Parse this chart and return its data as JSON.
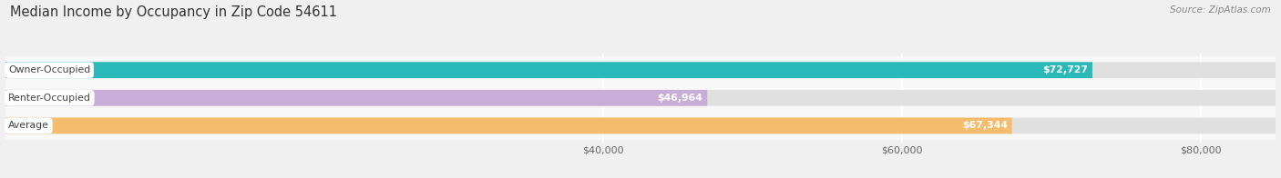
{
  "title": "Median Income by Occupancy in Zip Code 54611",
  "source": "Source: ZipAtlas.com",
  "categories": [
    "Owner-Occupied",
    "Renter-Occupied",
    "Average"
  ],
  "values": [
    72727,
    46964,
    67344
  ],
  "bar_colors": [
    "#2ab8b8",
    "#c8add8",
    "#f5bc6e"
  ],
  "bar_labels": [
    "$72,727",
    "$46,964",
    "$67,344"
  ],
  "xlim": [
    0,
    85000
  ],
  "xlim_display_min": 30000,
  "xticks": [
    40000,
    60000,
    80000
  ],
  "xtick_labels": [
    "$40,000",
    "$60,000",
    "$80,000"
  ],
  "title_fontsize": 10.5,
  "source_fontsize": 7.5,
  "bar_height": 0.58,
  "background_color": "#f0f0f0",
  "bar_bg_color": "#e0e0e0",
  "row_bg_colors": [
    "#f8f8f8",
    "#f8f8f8",
    "#f8f8f8"
  ]
}
